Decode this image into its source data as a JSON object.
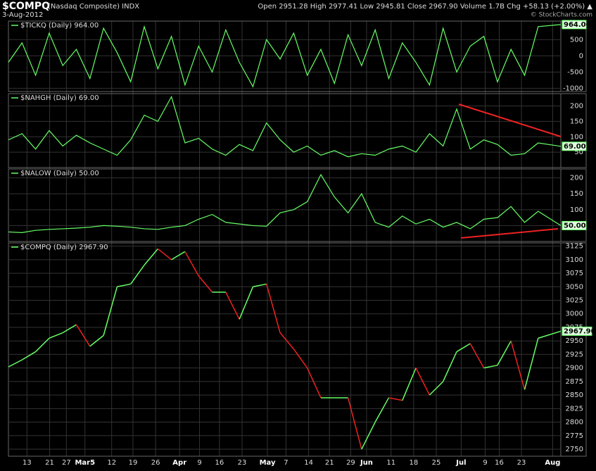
{
  "header": {
    "symbol": "$COMPQ",
    "name": "(Nasdaq Composite) INDX",
    "date": "3-Aug-2012",
    "quote": "Open 2951.28  High 2977.41  Low 2945.81  Close 2967.90  Volume 1.7B  Chg +58.13 (+2.00%) ▲",
    "source": "© StockCharts.com"
  },
  "chart_data": [
    {
      "type": "line",
      "label": "$TICKQ (Daily) 964.00",
      "last_label": "964.00",
      "color": "#66ff66",
      "x": [
        0,
        3,
        6,
        9,
        12,
        15,
        18,
        21,
        24,
        27,
        30,
        33,
        36,
        39,
        42,
        45,
        48,
        51,
        54,
        57,
        60,
        63,
        66,
        69,
        72,
        75,
        78,
        81,
        84,
        87,
        90,
        93,
        96,
        99,
        102,
        105,
        108,
        111,
        114,
        117,
        122
      ],
      "values": [
        -200,
        400,
        -600,
        700,
        -300,
        200,
        -700,
        850,
        100,
        -800,
        900,
        -400,
        600,
        -900,
        300,
        -500,
        800,
        -200,
        -950,
        500,
        -100,
        700,
        -600,
        200,
        -850,
        650,
        -300,
        800,
        -700,
        400,
        -200,
        -900,
        850,
        -500,
        300,
        600,
        -800,
        200,
        -600,
        900,
        964
      ],
      "ylim": [
        -1100,
        1070
      ],
      "yticks": [
        500,
        0,
        -500,
        -1000
      ]
    },
    {
      "type": "line",
      "label": "$NAHGH (Daily) 69.00",
      "last_label": "69.00",
      "color": "#66ff66",
      "x": [
        0,
        3,
        6,
        9,
        12,
        15,
        18,
        21,
        24,
        27,
        30,
        33,
        36,
        39,
        42,
        45,
        48,
        51,
        54,
        57,
        60,
        63,
        66,
        69,
        72,
        75,
        78,
        81,
        84,
        87,
        90,
        93,
        96,
        99,
        102,
        105,
        108,
        111,
        114,
        117,
        122
      ],
      "values": [
        90,
        110,
        60,
        120,
        70,
        105,
        80,
        60,
        40,
        90,
        170,
        150,
        230,
        80,
        95,
        60,
        40,
        75,
        55,
        145,
        90,
        50,
        70,
        40,
        55,
        35,
        45,
        40,
        60,
        70,
        50,
        110,
        70,
        190,
        60,
        90,
        75,
        40,
        45,
        80,
        69
      ],
      "ylim": [
        0,
        240
      ],
      "yticks": [
        200,
        150,
        100,
        50
      ]
    },
    {
      "type": "line",
      "label": "$NALOW (Daily) 50.00",
      "last_label": "50.00",
      "color": "#66ff66",
      "x": [
        0,
        3,
        6,
        9,
        12,
        15,
        18,
        21,
        24,
        27,
        30,
        33,
        36,
        39,
        42,
        45,
        48,
        51,
        54,
        57,
        60,
        63,
        66,
        69,
        72,
        75,
        78,
        81,
        84,
        87,
        90,
        93,
        96,
        99,
        102,
        105,
        108,
        111,
        114,
        117,
        122
      ],
      "values": [
        30,
        28,
        35,
        38,
        40,
        42,
        45,
        50,
        48,
        45,
        40,
        38,
        45,
        50,
        70,
        85,
        60,
        55,
        50,
        48,
        90,
        100,
        125,
        210,
        140,
        90,
        150,
        60,
        45,
        80,
        55,
        70,
        45,
        60,
        40,
        70,
        75,
        110,
        60,
        95,
        50
      ],
      "ylim": [
        0,
        228
      ],
      "yticks": [
        200,
        150,
        100,
        50
      ]
    },
    {
      "type": "line",
      "label": "$COMPQ (Daily) 2967.90",
      "last_label": "2967.90",
      "up_color": "#66ff66",
      "down_color": "#ee2222",
      "x": [
        0,
        3,
        6,
        9,
        12,
        15,
        18,
        21,
        24,
        27,
        30,
        33,
        36,
        39,
        42,
        45,
        48,
        51,
        54,
        57,
        60,
        63,
        66,
        69,
        72,
        75,
        78,
        81,
        84,
        87,
        90,
        93,
        96,
        99,
        102,
        105,
        108,
        111,
        114,
        117,
        122
      ],
      "values": [
        2902,
        2915,
        2930,
        2955,
        2965,
        2980,
        2940,
        2960,
        3050,
        3055,
        3090,
        3120,
        3100,
        3115,
        3070,
        3040,
        3040,
        2990,
        3050,
        3055,
        2965,
        2935,
        2900,
        2845,
        2845,
        2845,
        2750,
        2800,
        2845,
        2840,
        2900,
        2850,
        2875,
        2930,
        2945,
        2900,
        2905,
        2950,
        2860,
        2955,
        2967.9
      ],
      "ylim": [
        2737,
        3131
      ],
      "yticks": [
        3125,
        3100,
        3075,
        3050,
        3025,
        3000,
        2975,
        2950,
        2925,
        2900,
        2875,
        2850,
        2825,
        2800,
        2775,
        2750
      ],
      "xlim": [
        0,
        122
      ],
      "xticks": [
        {
          "value": 4.1,
          "label": "13"
        },
        {
          "value": 9.1,
          "label": "21"
        },
        {
          "value": 12.8,
          "label": "27"
        },
        {
          "value": 16.9,
          "label": "Mar5"
        },
        {
          "value": 22.8,
          "label": "12"
        },
        {
          "value": 27.5,
          "label": "19"
        },
        {
          "value": 32.5,
          "label": "26"
        },
        {
          "value": 37.8,
          "label": "Apr"
        },
        {
          "value": 42.2,
          "label": "9"
        },
        {
          "value": 46.6,
          "label": "16"
        },
        {
          "value": 51.6,
          "label": "23"
        },
        {
          "value": 57.2,
          "label": "May"
        },
        {
          "value": 61.3,
          "label": "7"
        },
        {
          "value": 66.3,
          "label": "14"
        },
        {
          "value": 70.9,
          "label": "21"
        },
        {
          "value": 75.6,
          "label": "29"
        },
        {
          "value": 79.1,
          "label": "Jun"
        },
        {
          "value": 84.5,
          "label": "11"
        },
        {
          "value": 89.5,
          "label": "18"
        },
        {
          "value": 94.5,
          "label": "25"
        },
        {
          "value": 100,
          "label": "Jul"
        },
        {
          "value": 105.3,
          "label": "9"
        },
        {
          "value": 108.4,
          "label": "16"
        },
        {
          "value": 113.3,
          "label": "23"
        },
        {
          "value": 120.2,
          "label": "Aug"
        }
      ]
    }
  ]
}
